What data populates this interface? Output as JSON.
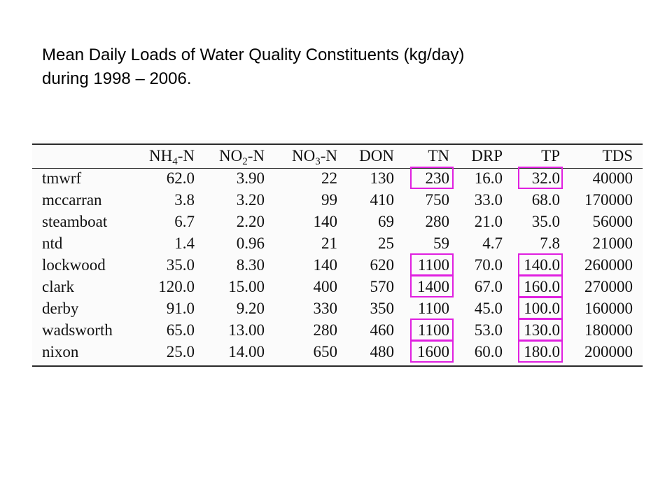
{
  "slide": {
    "title_line1": "Mean Daily Loads of Water Quality Constituents (kg/day)",
    "title_line2": "during 1998 – 2006."
  },
  "table": {
    "headers": [
      {
        "base": "NH",
        "sub": "4",
        "suffix": "-N"
      },
      {
        "base": "NO",
        "sub": "2",
        "suffix": "-N"
      },
      {
        "base": "NO",
        "sub": "3",
        "suffix": "-N"
      },
      {
        "base": "DON",
        "sub": "",
        "suffix": ""
      },
      {
        "base": "TN",
        "sub": "",
        "suffix": ""
      },
      {
        "base": "DRP",
        "sub": "",
        "suffix": ""
      },
      {
        "base": "TP",
        "sub": "",
        "suffix": ""
      },
      {
        "base": "TDS",
        "sub": "",
        "suffix": ""
      }
    ],
    "rows": [
      {
        "site": "tmwrf",
        "values": [
          "62.0",
          "3.90",
          "22",
          "130",
          "230",
          "16.0",
          "32.0",
          "40000"
        ]
      },
      {
        "site": "mccarran",
        "values": [
          "3.8",
          "3.20",
          "99",
          "410",
          "750",
          "33.0",
          "68.0",
          "170000"
        ]
      },
      {
        "site": "steamboat",
        "values": [
          "6.7",
          "2.20",
          "140",
          "69",
          "280",
          "21.0",
          "35.0",
          "56000"
        ]
      },
      {
        "site": "ntd",
        "values": [
          "1.4",
          "0.96",
          "21",
          "25",
          "59",
          "4.7",
          "7.8",
          "21000"
        ]
      },
      {
        "site": "lockwood",
        "values": [
          "35.0",
          "8.30",
          "140",
          "620",
          "1100",
          "70.0",
          "140.0",
          "260000"
        ]
      },
      {
        "site": "clark",
        "values": [
          "120.0",
          "15.00",
          "400",
          "570",
          "1400",
          "67.0",
          "160.0",
          "270000"
        ]
      },
      {
        "site": "derby",
        "values": [
          "91.0",
          "9.20",
          "330",
          "350",
          "1100",
          "45.0",
          "100.0",
          "160000"
        ]
      },
      {
        "site": "wadsworth",
        "values": [
          "65.0",
          "13.00",
          "280",
          "460",
          "1100",
          "53.0",
          "130.0",
          "180000"
        ]
      },
      {
        "site": "nixon",
        "values": [
          "25.0",
          "14.00",
          "650",
          "480",
          "1600",
          "60.0",
          "180.0",
          "200000"
        ]
      }
    ]
  },
  "highlights": {
    "color": "#e020e0",
    "tn_rows": [
      0,
      4,
      5,
      7,
      8
    ],
    "tp_rows": [
      0,
      4,
      5,
      6,
      7,
      8
    ]
  }
}
